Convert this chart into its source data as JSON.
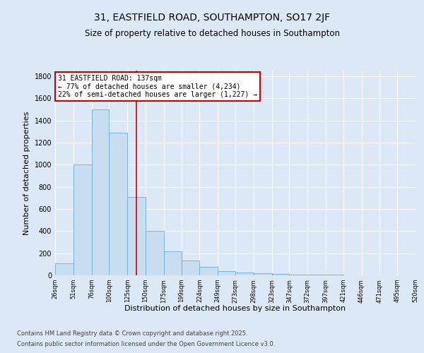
{
  "title": "31, EASTFIELD ROAD, SOUTHAMPTON, SO17 2JF",
  "subtitle": "Size of property relative to detached houses in Southampton",
  "xlabel": "Distribution of detached houses by size in Southampton",
  "ylabel": "Number of detached properties",
  "annotation_line1": "31 EASTFIELD ROAD: 137sqm",
  "annotation_line2": "← 77% of detached houses are smaller (4,234)",
  "annotation_line3": "22% of semi-detached houses are larger (1,227) →",
  "property_size": 137,
  "bar_left_edges": [
    26,
    51,
    76,
    100,
    125,
    150,
    175,
    199,
    224,
    249,
    273,
    298,
    323,
    347,
    372,
    397,
    421,
    446,
    471,
    495
  ],
  "bar_widths": [
    25,
    25,
    24,
    25,
    25,
    25,
    24,
    25,
    25,
    24,
    25,
    25,
    24,
    25,
    25,
    24,
    25,
    25,
    24,
    25
  ],
  "bar_heights": [
    110,
    1000,
    1500,
    1290,
    710,
    400,
    215,
    135,
    75,
    40,
    25,
    18,
    12,
    8,
    5,
    4,
    2,
    2,
    1,
    1
  ],
  "bar_color": "#c8ddf0",
  "bar_edgecolor": "#6baed6",
  "vline_x": 137,
  "vline_color": "#cc0000",
  "annotation_box_color": "#cc0000",
  "ylim": [
    0,
    1850
  ],
  "yticks": [
    0,
    200,
    400,
    600,
    800,
    1000,
    1200,
    1400,
    1600,
    1800
  ],
  "xtick_labels": [
    "26sqm",
    "51sqm",
    "76sqm",
    "100sqm",
    "125sqm",
    "150sqm",
    "175sqm",
    "199sqm",
    "224sqm",
    "249sqm",
    "273sqm",
    "298sqm",
    "323sqm",
    "347sqm",
    "372sqm",
    "397sqm",
    "421sqm",
    "446sqm",
    "471sqm",
    "495sqm",
    "520sqm"
  ],
  "background_color": "#dce8f5",
  "plot_bg_color": "#dce8f5",
  "grid_color": "#ffffff",
  "footer_line1": "Contains HM Land Registry data © Crown copyright and database right 2025.",
  "footer_line2": "Contains public sector information licensed under the Open Government Licence v3.0.",
  "title_fontsize": 10,
  "subtitle_fontsize": 8.5,
  "xlabel_fontsize": 8,
  "ylabel_fontsize": 8,
  "annot_fontsize": 7,
  "footer_fontsize": 6
}
